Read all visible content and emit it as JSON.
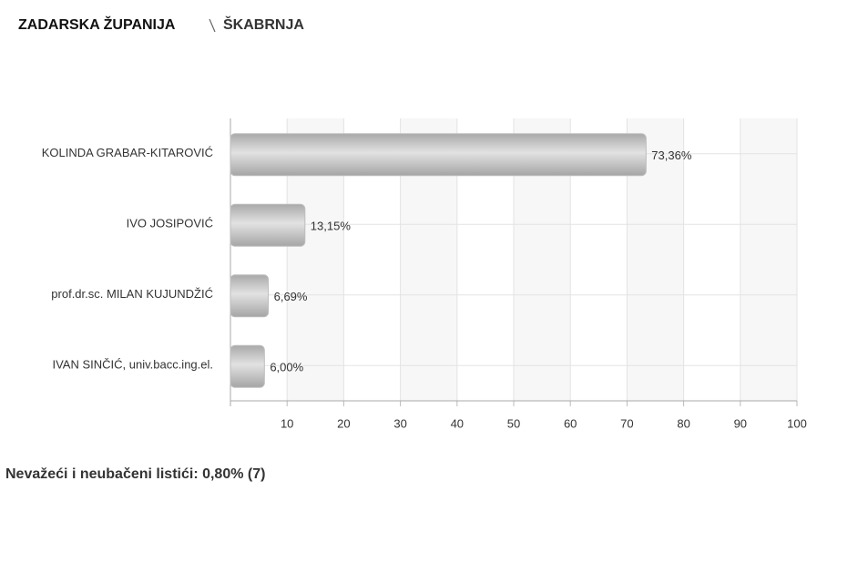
{
  "header": {
    "breadcrumb": [
      "ZADARSKA ŽUPANIJA",
      "ŠKABRNJA"
    ]
  },
  "chart_data": {
    "type": "bar",
    "orientation": "horizontal",
    "categories": [
      "KOLINDA GRABAR-KITAROVIĆ",
      "IVO JOSIPOVIĆ",
      "prof.dr.sc. MILAN KUJUNDŽIĆ",
      "IVAN SINČIĆ, univ.bacc.ing.el."
    ],
    "values": [
      73.36,
      13.15,
      6.69,
      6.0
    ],
    "value_labels": [
      "73,36%",
      "13,15%",
      "6,69%",
      "6,00%"
    ],
    "color": "#bdbdbd",
    "xlim": [
      0,
      100
    ],
    "xticks": [
      10,
      20,
      30,
      40,
      50,
      60,
      70,
      80,
      90,
      100
    ],
    "grid": true
  },
  "footer": {
    "note": "Nevažeći i neubačeni listići: 0,80% (7)"
  }
}
